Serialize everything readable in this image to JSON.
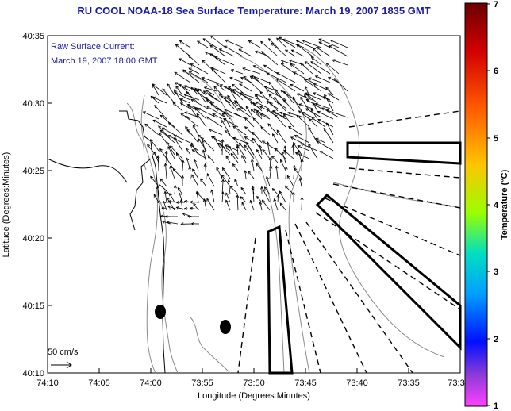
{
  "header": {
    "title": "RU COOL  NOAA-18  Sea Surface Temperature:  March 19, 2007 1835 GMT"
  },
  "annotation": {
    "line1": "Raw Surface Current:",
    "line2": "March 19, 2007 18:00 GMT"
  },
  "scale": {
    "label": "50 cm/s"
  },
  "axes": {
    "x_label": "Longitude (Degrees:Minutes)",
    "y_label": "Latitude (Degrees:Minutes)",
    "x_ticks": [
      "74:10",
      "74:05",
      "74:00",
      "73:55",
      "73:50",
      "73:45",
      "73:40",
      "73:35",
      "73:3"
    ],
    "y_ticks": [
      "40:35",
      "40:30",
      "40:25",
      "40:20",
      "40:15",
      "40:10"
    ]
  },
  "colorbar": {
    "label": "Temperature (°C)",
    "ticks": [
      "7",
      "6",
      "5",
      "4",
      "3",
      "2",
      "1"
    ],
    "colors": [
      "#6a0000",
      "#d40000",
      "#ff5a00",
      "#ffc400",
      "#9aff00",
      "#00e0c0",
      "#00a0ff",
      "#0010ff",
      "#8a3ad8",
      "#ff40ff"
    ]
  }
}
